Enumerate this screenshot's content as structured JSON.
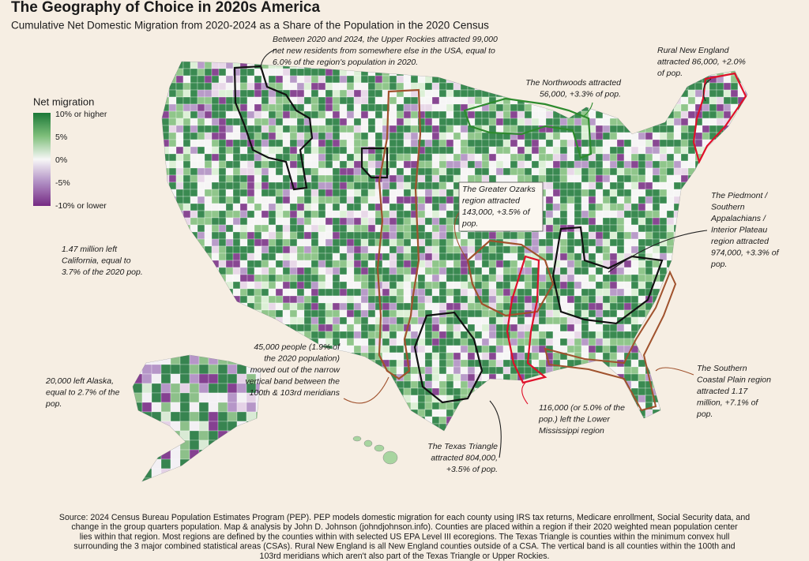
{
  "header": {
    "title": "The Geography of Choice in 2020s America",
    "subtitle": "Cumulative Net Domestic Migration from 2020-2024 as a Share of the Population in the 2020 Census"
  },
  "legend": {
    "title": "Net migration",
    "items": [
      {
        "label": "10% or higher",
        "color": "#1b7837"
      },
      {
        "label": "5%",
        "color": "#7fbf7b"
      },
      {
        "label": "0%",
        "color": "#f7f7f7"
      },
      {
        "label": "-5%",
        "color": "#af8dc3"
      },
      {
        "label": "-10% or lower",
        "color": "#762a83"
      }
    ]
  },
  "annotations": [
    {
      "lines": [
        "Between 2020 and 2024, the Upper Rockies attracted 99,000",
        "net new residents from somewhere else in the USA, equal to",
        "6.0% of the region's population in 2020."
      ]
    },
    {
      "lines": [
        "Rural New England",
        "attracted 86,000, +2.0%",
        "of pop."
      ]
    },
    {
      "lines": [
        "The Northwoods attracted",
        "56,000, +3.3% of pop."
      ]
    },
    {
      "lines": [
        "The Greater Ozarks",
        "region attracted",
        "143,000, +3.5% of",
        "pop."
      ]
    },
    {
      "lines": [
        "The Piedmont /",
        "Southern",
        "Appalachians /",
        "Interior Plateau",
        "region attracted",
        "974,000, +3.3% of",
        "pop."
      ]
    },
    {
      "lines": [
        "1.47 million left",
        "California, equal to",
        "3.7% of the 2020 pop."
      ]
    },
    {
      "lines": [
        "45,000 people (1.9% of",
        "the 2020 population)",
        "moved out of the narrow",
        "vertical band between the",
        "100th & 103rd meridians"
      ]
    },
    {
      "lines": [
        "20,000 left Alaska,",
        "equal to 2.7% of the",
        "pop."
      ]
    },
    {
      "lines": [
        "The Southern",
        "Coastal Plain region",
        "attracted 1.17",
        "million, +7.1% of",
        "pop."
      ]
    },
    {
      "lines": [
        "116,000 (or 5.0% of the",
        "pop.) left the Lower",
        "Mississippi region"
      ]
    },
    {
      "lines": [
        "The Texas Triangle",
        "attracted 804,000,",
        "+3.5% of pop."
      ]
    }
  ],
  "source": {
    "lines": [
      "Source: 2024 Census Bureau Population Estimates Program (PEP). PEP models domestic migration for each county using IRS tax returns, Medicare enrollment, Social Security data, and",
      "change in the group quarters population. Map & analysis by John D. Johnson (johndjohnson.info). Counties are placed within a region if their 2020 weighted mean population center",
      "lies within that region. Most regions are defined by the counties within with selected US EPA Level III ecoregions. The Texas Triangle is counties within the minimum convex hull",
      "surrounding the 3 major combined statistical areas (CSAs). Rural New England is all New England counties outside of a CSA. The vertical band is all counties within the 100th and",
      "103rd meridians which aren't also part of the Texas Triangle or Upper Rockies."
    ]
  }
}
